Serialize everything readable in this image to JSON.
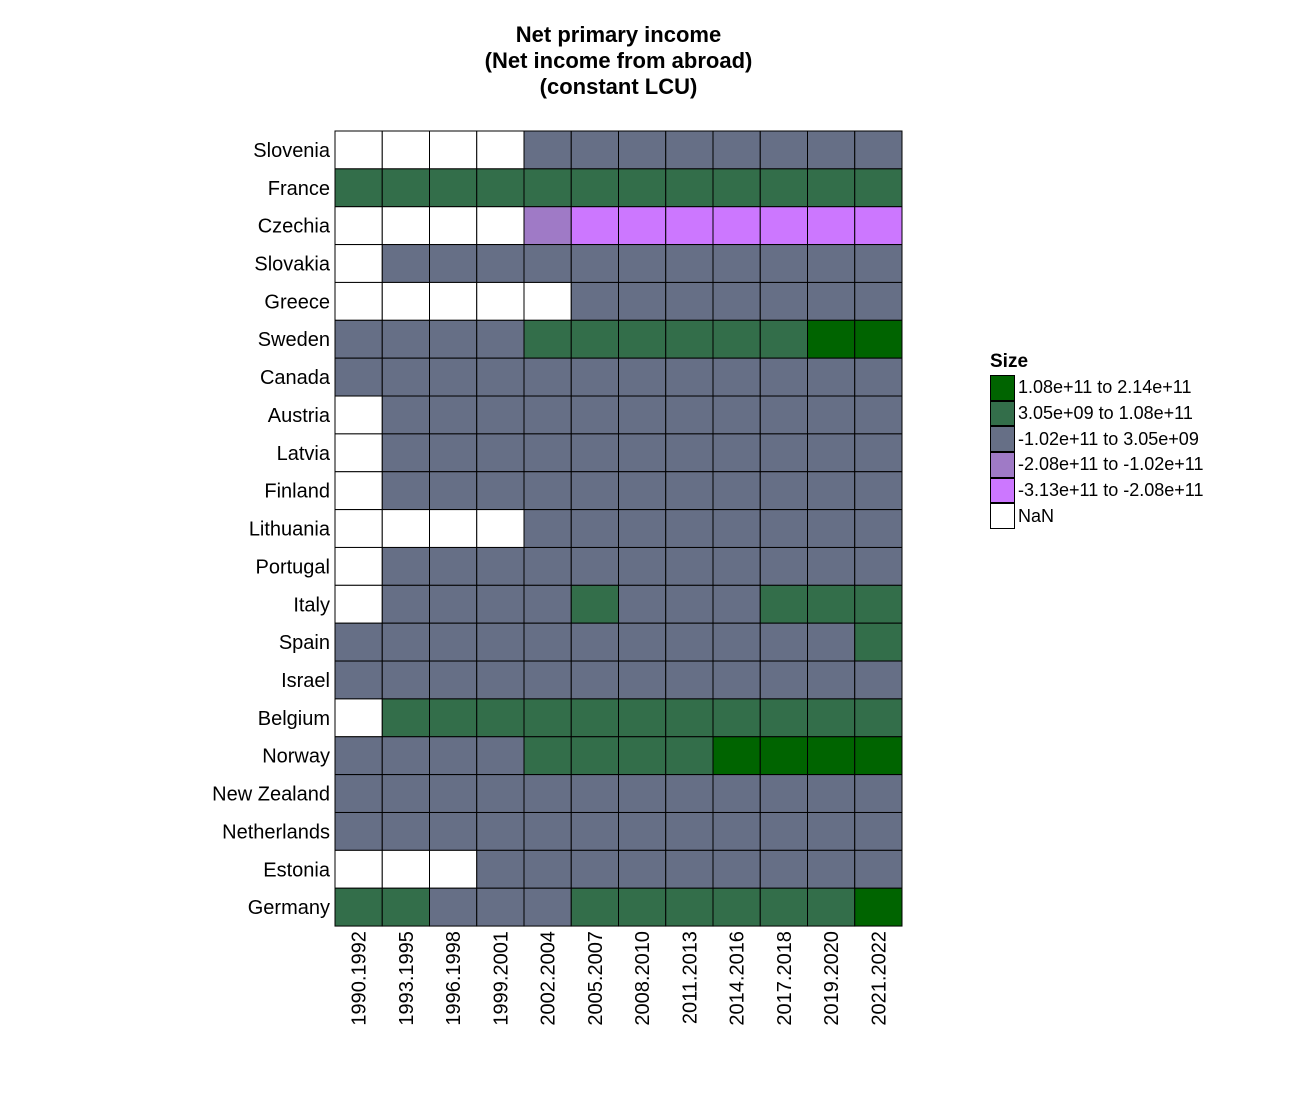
{
  "chart_data": {
    "type": "heatmap",
    "title_lines": [
      "Net primary income",
      "(Net income from abroad)",
      "(constant LCU)"
    ],
    "x": [
      "1990.1992",
      "1993.1995",
      "1996.1998",
      "1999.2001",
      "2002.2004",
      "2005.2007",
      "2008.2010",
      "2011.2013",
      "2014.2016",
      "2017.2018",
      "2019.2020",
      "2021.2022"
    ],
    "y": [
      "Slovenia",
      "France",
      "Czechia",
      "Slovakia",
      "Greece",
      "Sweden",
      "Canada",
      "Austria",
      "Latvia",
      "Finland",
      "Lithuania",
      "Portugal",
      "Italy",
      "Spain",
      "Israel",
      "Belgium",
      "Norway",
      "New Zealand",
      "Netherlands",
      "Estonia",
      "Germany"
    ],
    "legend": {
      "title": "Size",
      "placement": "right",
      "bins": [
        {
          "label": "1.08e+11 to 2.14e+11",
          "color": "#006400"
        },
        {
          "label": "3.05e+09 to 1.08e+11",
          "color": "#336e4a"
        },
        {
          "label": "-1.02e+11 to 3.05e+09",
          "color": "#666f86"
        },
        {
          "label": "-2.08e+11 to -1.02e+11",
          "color": "#9f7ac6"
        },
        {
          "label": "-3.13e+11 to -2.08e+11",
          "color": "#cc77ff"
        },
        {
          "label": "NaN",
          "color": "#ffffff"
        }
      ]
    },
    "cells": [
      [
        5,
        5,
        5,
        5,
        2,
        2,
        2,
        2,
        2,
        2,
        2,
        2
      ],
      [
        1,
        1,
        1,
        1,
        1,
        1,
        1,
        1,
        1,
        1,
        1,
        1
      ],
      [
        5,
        5,
        5,
        5,
        3,
        4,
        4,
        4,
        4,
        4,
        4,
        4
      ],
      [
        5,
        2,
        2,
        2,
        2,
        2,
        2,
        2,
        2,
        2,
        2,
        2
      ],
      [
        5,
        5,
        5,
        5,
        5,
        2,
        2,
        2,
        2,
        2,
        2,
        2
      ],
      [
        2,
        2,
        2,
        2,
        1,
        1,
        1,
        1,
        1,
        1,
        0,
        0
      ],
      [
        2,
        2,
        2,
        2,
        2,
        2,
        2,
        2,
        2,
        2,
        2,
        2
      ],
      [
        5,
        2,
        2,
        2,
        2,
        2,
        2,
        2,
        2,
        2,
        2,
        2
      ],
      [
        5,
        2,
        2,
        2,
        2,
        2,
        2,
        2,
        2,
        2,
        2,
        2
      ],
      [
        5,
        2,
        2,
        2,
        2,
        2,
        2,
        2,
        2,
        2,
        2,
        2
      ],
      [
        5,
        5,
        5,
        5,
        2,
        2,
        2,
        2,
        2,
        2,
        2,
        2
      ],
      [
        5,
        2,
        2,
        2,
        2,
        2,
        2,
        2,
        2,
        2,
        2,
        2
      ],
      [
        5,
        2,
        2,
        2,
        2,
        1,
        2,
        2,
        2,
        1,
        1,
        1
      ],
      [
        2,
        2,
        2,
        2,
        2,
        2,
        2,
        2,
        2,
        2,
        2,
        1
      ],
      [
        2,
        2,
        2,
        2,
        2,
        2,
        2,
        2,
        2,
        2,
        2,
        2
      ],
      [
        5,
        1,
        1,
        1,
        1,
        1,
        1,
        1,
        1,
        1,
        1,
        1
      ],
      [
        2,
        2,
        2,
        2,
        1,
        1,
        1,
        1,
        0,
        0,
        0,
        0
      ],
      [
        2,
        2,
        2,
        2,
        2,
        2,
        2,
        2,
        2,
        2,
        2,
        2
      ],
      [
        2,
        2,
        2,
        2,
        2,
        2,
        2,
        2,
        2,
        2,
        2,
        2
      ],
      [
        5,
        5,
        5,
        2,
        2,
        2,
        2,
        2,
        2,
        2,
        2,
        2
      ],
      [
        1,
        1,
        2,
        2,
        2,
        1,
        1,
        1,
        1,
        1,
        1,
        0
      ]
    ]
  }
}
